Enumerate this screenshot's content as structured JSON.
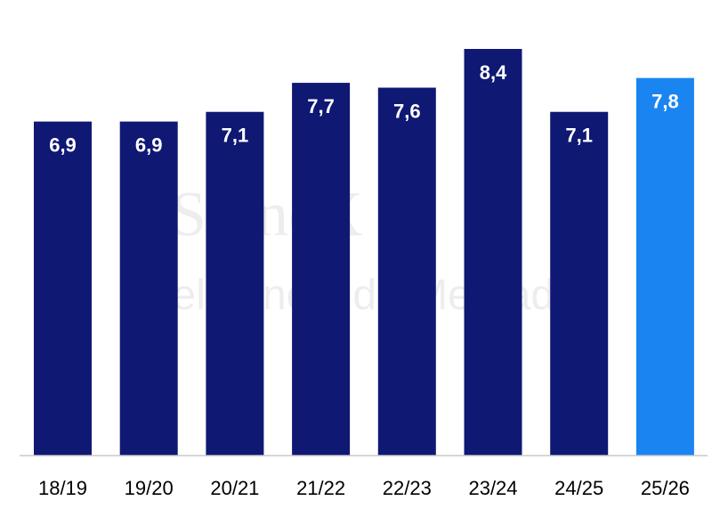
{
  "chart_data": {
    "type": "bar",
    "categories": [
      "18/19",
      "19/20",
      "20/21",
      "21/22",
      "22/23",
      "23/24",
      "24/25",
      "25/26"
    ],
    "values": [
      6.9,
      6.9,
      7.1,
      7.7,
      7.6,
      8.4,
      7.1,
      7.8
    ],
    "value_labels": [
      "6,9",
      "6,9",
      "7,1",
      "7,7",
      "7,6",
      "8,4",
      "7,1",
      "7,8"
    ],
    "colors": [
      "#0f1873",
      "#0f1873",
      "#0f1873",
      "#0f1873",
      "#0f1873",
      "#0f1873",
      "#0f1873",
      "#1a85f0"
    ],
    "watermark": [
      "StoneX",
      "Inteligência de Mercado"
    ]
  }
}
